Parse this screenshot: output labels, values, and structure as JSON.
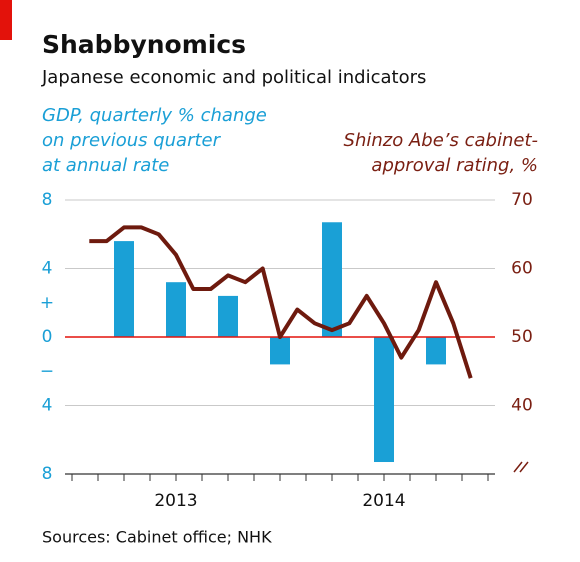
{
  "chart_data": {
    "type": "bar-line",
    "title": "Shabbynomics",
    "subtitle": "Japanese economic and political indicators",
    "ylabel": [
      "GDP, quarterly % change",
      "on previous quarter",
      "at annual rate"
    ],
    "y2label": [
      "Shinzo Abe’s cabinet-",
      "approval rating, %"
    ],
    "source": "Sources: Cabinet office; NHK",
    "xlim": [
      0,
      24
    ],
    "xticks": [
      0,
      1.5,
      3,
      4.5,
      6,
      7.5,
      9,
      10.5,
      12,
      13.5,
      15,
      16.5,
      18,
      19.5,
      21,
      22.5,
      24
    ],
    "x_labels": [
      {
        "value": 6,
        "label": "2013"
      },
      {
        "value": 18,
        "label": "2014"
      }
    ],
    "ylim": [
      -8,
      8
    ],
    "yticks": [
      8,
      4,
      0,
      {
        "value": -4,
        "label": "4"
      },
      {
        "value": -8,
        "label": "8"
      }
    ],
    "sign_labels": [
      {
        "value": 2,
        "label": "+"
      },
      {
        "value": -2,
        "label": "−"
      }
    ],
    "y2lim": [
      30,
      70
    ],
    "y2ticks": [
      70,
      60,
      50,
      40
    ],
    "grid": true,
    "series": [
      {
        "name": "GDP",
        "type": "bar",
        "axis": "y",
        "color": "#1aa0d6",
        "x": [
          3,
          6,
          9,
          12,
          15,
          18,
          21
        ],
        "values": [
          5.6,
          3.2,
          2.4,
          -1.6,
          6.7,
          -7.3,
          -1.6
        ]
      },
      {
        "name": "Cabinet approval",
        "type": "line",
        "axis": "y2",
        "color": "#6e1a0e",
        "x": [
          1,
          2,
          3,
          4,
          5,
          6,
          7,
          8,
          9,
          10,
          11,
          12,
          13,
          14,
          15,
          16,
          17,
          18,
          19,
          20,
          21,
          22,
          23
        ],
        "values": [
          64,
          64,
          66,
          66,
          65,
          62,
          57,
          57,
          59,
          58,
          60,
          50,
          54,
          52,
          51,
          52,
          56,
          52,
          47,
          51,
          58,
          52,
          44
        ]
      }
    ]
  }
}
